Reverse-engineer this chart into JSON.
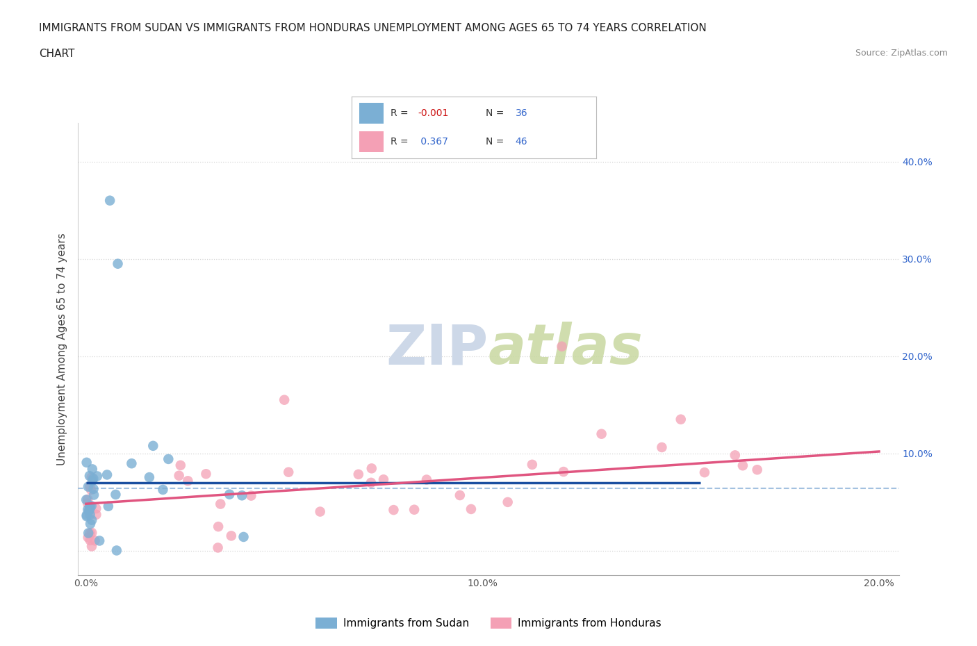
{
  "title_line1": "IMMIGRANTS FROM SUDAN VS IMMIGRANTS FROM HONDURAS UNEMPLOYMENT AMONG AGES 65 TO 74 YEARS CORRELATION",
  "title_line2": "CHART",
  "source": "Source: ZipAtlas.com",
  "ylabel": "Unemployment Among Ages 65 to 74 years",
  "xlim": [
    -0.002,
    0.205
  ],
  "ylim": [
    -0.025,
    0.44
  ],
  "yticks": [
    0.0,
    0.1,
    0.2,
    0.3,
    0.4
  ],
  "xticks": [
    0.0,
    0.05,
    0.1,
    0.15,
    0.2
  ],
  "xtick_labels": [
    "0.0%",
    "",
    "10.0%",
    "",
    "20.0%"
  ],
  "ytick_labels_left": [
    "",
    "",
    "",
    "",
    ""
  ],
  "ytick_labels_right": [
    "",
    "10.0%",
    "20.0%",
    "30.0%",
    "40.0%"
  ],
  "sudan_color": "#7bafd4",
  "honduras_color": "#f4a0b5",
  "sudan_line_color": "#1a4fa0",
  "honduras_line_color": "#e05580",
  "sudan_R": "-0.001",
  "sudan_N": "36",
  "honduras_R": "0.367",
  "honduras_N": "46",
  "legend_R_color": "#cc1111",
  "legend_N_color": "#3366cc",
  "dashed_line_color": "#99bbdd",
  "grid_color": "#cccccc",
  "watermark_color": "#cdd8e8",
  "bottom_legend_label1": "Immigrants from Sudan",
  "bottom_legend_label2": "Immigrants from Honduras"
}
